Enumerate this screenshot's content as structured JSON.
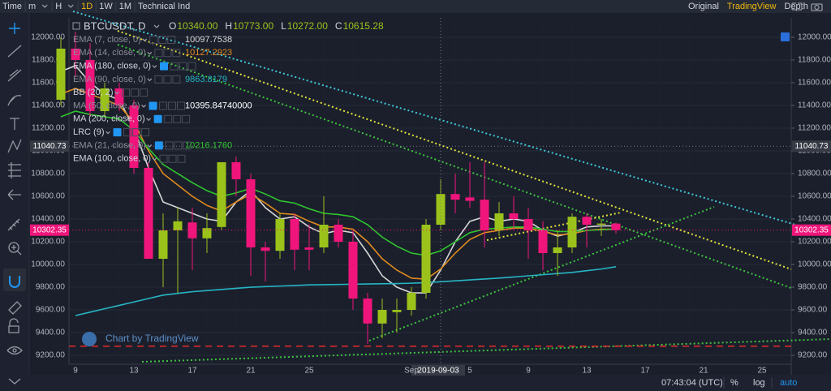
{
  "toolbar": {
    "left": [
      "Time",
      "m",
      "H",
      "1D",
      "1W",
      "1M",
      "Technical Ind"
    ],
    "right": [
      "Original",
      "TradingView",
      "Depth"
    ]
  },
  "chart_data": {
    "type": "candlestick",
    "title": "BTCUSDT, D",
    "ohlc_readout": [
      {
        "label": "O",
        "value": "10340.00"
      },
      {
        "label": "H",
        "value": "10773.00"
      },
      {
        "label": "L",
        "value": "10272.00"
      },
      {
        "label": "C",
        "value": "10615.28"
      }
    ],
    "categories": [
      null,
      "9",
      null,
      null,
      null,
      "13",
      null,
      null,
      null,
      "17",
      null,
      null,
      null,
      "21",
      null,
      null,
      null,
      "25",
      null,
      null,
      null,
      null,
      null,
      null,
      "Sep",
      null,
      null,
      null,
      "5",
      null,
      null,
      null,
      "9",
      null,
      null,
      null,
      "13",
      null,
      null,
      null,
      "17",
      null,
      null,
      null,
      "21",
      null,
      null,
      null,
      "25"
    ],
    "open": [
      11450,
      11900,
      11800,
      11350,
      11550,
      11400,
      10850,
      10050,
      10300,
      10370,
      10230,
      10330,
      10900,
      10750,
      10150,
      10120,
      10400,
      10150,
      10150,
      10350,
      10200,
      9700,
      9480,
      9580,
      9600,
      9750,
      10350,
      10620,
      10590,
      10570,
      10300,
      10450,
      10400,
      10300,
      10100,
      10150,
      10420,
      10350,
      10360,
      null,
      null,
      null,
      null,
      null,
      null,
      null,
      null,
      null,
      null
    ],
    "high": [
      12000,
      12050,
      11950,
      11600,
      11600,
      11450,
      10900,
      10450,
      10500,
      10500,
      10450,
      10900,
      10950,
      10800,
      10200,
      10450,
      10450,
      10350,
      10600,
      10400,
      10300,
      9750,
      9700,
      9700,
      9800,
      10400,
      10750,
      10800,
      10900,
      10900,
      10550,
      10600,
      10500,
      10380,
      10300,
      10450,
      10450,
      10400,
      10370,
      null,
      null,
      null,
      null,
      null,
      null,
      null,
      null,
      null,
      null
    ],
    "low": [
      11400,
      11650,
      11300,
      11300,
      11350,
      10800,
      10050,
      9800,
      9750,
      9950,
      10100,
      10300,
      10600,
      9900,
      9850,
      10050,
      9950,
      9950,
      10100,
      10150,
      9600,
      9300,
      9350,
      9400,
      9550,
      9700,
      10300,
      10450,
      10500,
      10150,
      10250,
      10300,
      10050,
      9950,
      9900,
      10100,
      10150,
      10250,
      10272,
      null,
      null,
      null,
      null,
      null,
      null,
      null,
      null,
      null,
      null
    ],
    "close": [
      11900,
      11800,
      11350,
      11550,
      11400,
      10850,
      10050,
      10300,
      10380,
      10230,
      10320,
      10900,
      10750,
      10150,
      10120,
      10400,
      10130,
      10130,
      10350,
      10200,
      9700,
      9480,
      9600,
      9600,
      9750,
      10350,
      10620,
      10570,
      10560,
      10300,
      10450,
      10400,
      10300,
      10100,
      10150,
      10420,
      10350,
      10360,
      10302.35,
      null,
      null,
      null,
      null,
      null,
      null,
      null,
      null,
      null,
      null
    ],
    "up_color": "#9bc21b",
    "down_color": "#f0157b",
    "indicators": [
      {
        "name": "EMA (7, close, 0)",
        "value": "10097.7538",
        "color": "#d6d6d6",
        "values": [
          11700,
          11750,
          11600,
          11500,
          11450,
          11200,
          10850,
          10550,
          10500,
          10450,
          10400,
          10380,
          10550,
          10650,
          10500,
          10400,
          10420,
          10330,
          10270,
          10300,
          10280,
          10100,
          9900,
          9800,
          9750,
          9750,
          9950,
          10200,
          10380,
          10420,
          10380,
          10400,
          10380,
          10300,
          10250,
          10280,
          10330,
          10340,
          10340,
          null,
          null,
          null,
          null,
          null,
          null,
          null,
          null,
          null,
          null
        ]
      },
      {
        "name": "EMA (14, close, 0)",
        "value": "10127.2923",
        "color": "#e08a1e",
        "values": [
          11500,
          11550,
          11500,
          11450,
          11400,
          11250,
          11000,
          10800,
          10700,
          10600,
          10520,
          10470,
          10550,
          10620,
          10540,
          10450,
          10440,
          10380,
          10330,
          10330,
          10310,
          10200,
          10050,
          9950,
          9880,
          9870,
          9960,
          10100,
          10220,
          10280,
          10300,
          10320,
          10320,
          10290,
          10260,
          10270,
          10300,
          10310,
          10310,
          null,
          null,
          null,
          null,
          null,
          null,
          null,
          null,
          null,
          null
        ]
      },
      {
        "name": "EMA (180, close, 0)"
      },
      {
        "name": "EMA (90, close, 0)",
        "value": "9863.8179",
        "color": "#26b5c4",
        "values": [
          null,
          9550,
          9580,
          9610,
          9640,
          9670,
          9700,
          9730,
          9745,
          9760,
          9770,
          9780,
          9790,
          9800,
          9805,
          9810,
          9815,
          9820,
          9822,
          9824,
          9826,
          9828,
          9830,
          9832,
          9835,
          9840,
          9848,
          9856,
          9864,
          9872,
          9880,
          9890,
          9900,
          9910,
          9920,
          9930,
          9945,
          9960,
          9980,
          null,
          null,
          null,
          null,
          null,
          null,
          null,
          null,
          null,
          null
        ]
      },
      {
        "name": "BB (20, 2)"
      },
      {
        "name": "MA (50, close, 0)",
        "value": "10395.84740000",
        "color": "#ffffff"
      },
      {
        "name": "MA (200, close, 0)"
      },
      {
        "name": "LRC (9)"
      },
      {
        "name": "EMA (21, close, 0)",
        "value": "10216.1760",
        "color": "#2fc42f",
        "values": [
          11300,
          11350,
          11320,
          11300,
          11280,
          11180,
          11020,
          10880,
          10800,
          10720,
          10650,
          10600,
          10630,
          10670,
          10620,
          10560,
          10540,
          10490,
          10450,
          10440,
          10420,
          10350,
          10240,
          10160,
          10100,
          10080,
          10120,
          10200,
          10280,
          10310,
          10320,
          10330,
          10330,
          10310,
          10290,
          10290,
          10300,
          10305,
          10310,
          null,
          null,
          null,
          null,
          null,
          null,
          null,
          null,
          null,
          null
        ]
      },
      {
        "name": "EMA (100, close, 0)"
      }
    ],
    "ylim": [
      9136,
      12171
    ],
    "yticks": [
      {
        "value": 9200,
        "label": "9200.00"
      },
      {
        "value": 9400,
        "label": "9400.00"
      },
      {
        "value": 9600,
        "label": "9600.00"
      },
      {
        "value": 9800,
        "label": "9800.00"
      },
      {
        "value": 10000,
        "label": "10000.00"
      },
      {
        "value": 10200,
        "label": "10200.00"
      },
      {
        "value": 10400,
        "label": "10400.00"
      },
      {
        "value": 10600,
        "label": "10600.00"
      },
      {
        "value": 10800,
        "label": "10800.00"
      },
      {
        "value": 11000,
        "label": "11000.00"
      },
      {
        "value": 11200,
        "label": "11200.00"
      },
      {
        "value": 11400,
        "label": "11400.00"
      },
      {
        "value": 11600,
        "label": "11600.00"
      },
      {
        "value": 11800,
        "label": "11800.00"
      },
      {
        "value": 12000,
        "label": "12000.00"
      }
    ],
    "grid": true,
    "price_markers": [
      {
        "value": 11040.73,
        "label": "11040.73",
        "color": "#363a45"
      },
      {
        "value": 10302.35,
        "label": "10302.35",
        "color": "#f0157b"
      }
    ],
    "crosshair_date": "2019-09-03"
  },
  "watermark": "Chart by TradingView",
  "status_bar": {
    "time": "07:43:04 (UTC)",
    "percent": "%",
    "log": "log",
    "auto": "auto"
  }
}
